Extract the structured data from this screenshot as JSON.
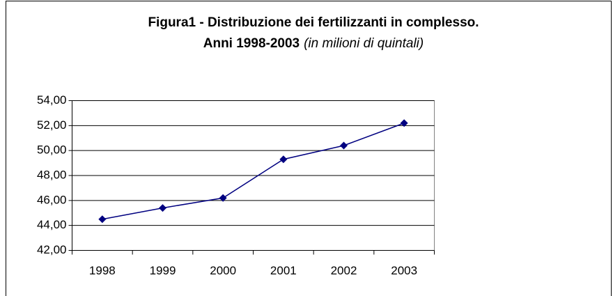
{
  "chart_data": {
    "type": "line",
    "title": "Figura1 - Distribuzione dei fertilizzanti in complesso.",
    "subtitle": "Anni 1998-2003",
    "subtitle_note": "(in milioni di quintali)",
    "categories": [
      "1998",
      "1999",
      "2000",
      "2001",
      "2002",
      "2003"
    ],
    "series": [
      {
        "color": "#000080",
        "values": [
          44.5,
          45.4,
          46.2,
          49.3,
          50.4,
          52.2
        ]
      }
    ],
    "ylim": [
      42,
      54
    ],
    "yticks": [
      {
        "value": 42,
        "label": "42,00"
      },
      {
        "value": 44,
        "label": "44,00"
      },
      {
        "value": 46,
        "label": "46,00"
      },
      {
        "value": 48,
        "label": "48,00"
      },
      {
        "value": 50,
        "label": "50,00"
      },
      {
        "value": 52,
        "label": "52,00"
      },
      {
        "value": 54,
        "label": "54,00"
      }
    ],
    "grid": true
  }
}
